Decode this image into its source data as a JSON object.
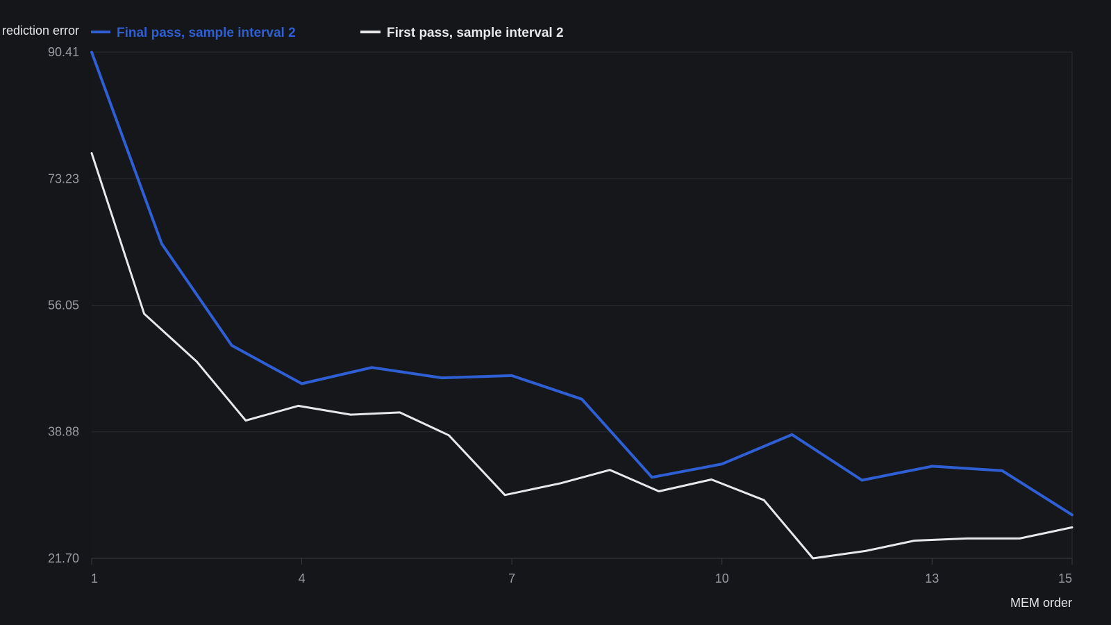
{
  "colors": {
    "background": "#151619",
    "plot_background": "#16171b",
    "gridline": "#2a2c31",
    "axis_line": "#3a3c42",
    "tick_text": "#9a9ca3",
    "label_text": "#e4e5e8"
  },
  "chart_data": {
    "type": "line",
    "ylabel": "rediction error",
    "xlabel": "MEM order",
    "legend_position": "top-left",
    "grid": true,
    "xlim": [
      1,
      15
    ],
    "ylim": [
      21.7,
      90.41
    ],
    "x_ticks": [
      "1",
      "4",
      "7",
      "10",
      "13",
      "15"
    ],
    "x_tick_values": [
      1,
      4,
      7,
      10,
      13,
      15
    ],
    "y_ticks": [
      "90.41",
      "73.23",
      "56.05",
      "38.88",
      "21.70"
    ],
    "y_tick_values": [
      90.41,
      73.23,
      56.05,
      38.88,
      21.7
    ],
    "series": [
      {
        "name": "Final pass, sample interval 2",
        "color": "#2f5fd4",
        "x": [
          1,
          2,
          3,
          4,
          5,
          6,
          7,
          8,
          9,
          10,
          11,
          12,
          13,
          14,
          15
        ],
        "y": [
          90.4,
          64.4,
          50.6,
          45.4,
          47.6,
          46.2,
          46.5,
          43.3,
          32.7,
          34.5,
          38.5,
          32.3,
          34.2,
          33.6,
          27.6
        ]
      },
      {
        "name": "First pass, sample interval 2",
        "color": "#e8e8ea",
        "x": [
          1,
          1.75,
          2.5,
          3.2,
          3.95,
          4.7,
          5.4,
          6.1,
          6.9,
          7.7,
          8.4,
          9.1,
          9.85,
          10.6,
          11.3,
          12.05,
          12.75,
          13.5,
          14.25,
          15
        ],
        "y": [
          76.7,
          54.9,
          48.4,
          40.4,
          42.4,
          41.2,
          41.5,
          38.4,
          30.3,
          31.9,
          33.7,
          30.8,
          32.4,
          29.6,
          21.7,
          22.7,
          24.1,
          24.4,
          24.4,
          25.9
        ]
      }
    ]
  }
}
